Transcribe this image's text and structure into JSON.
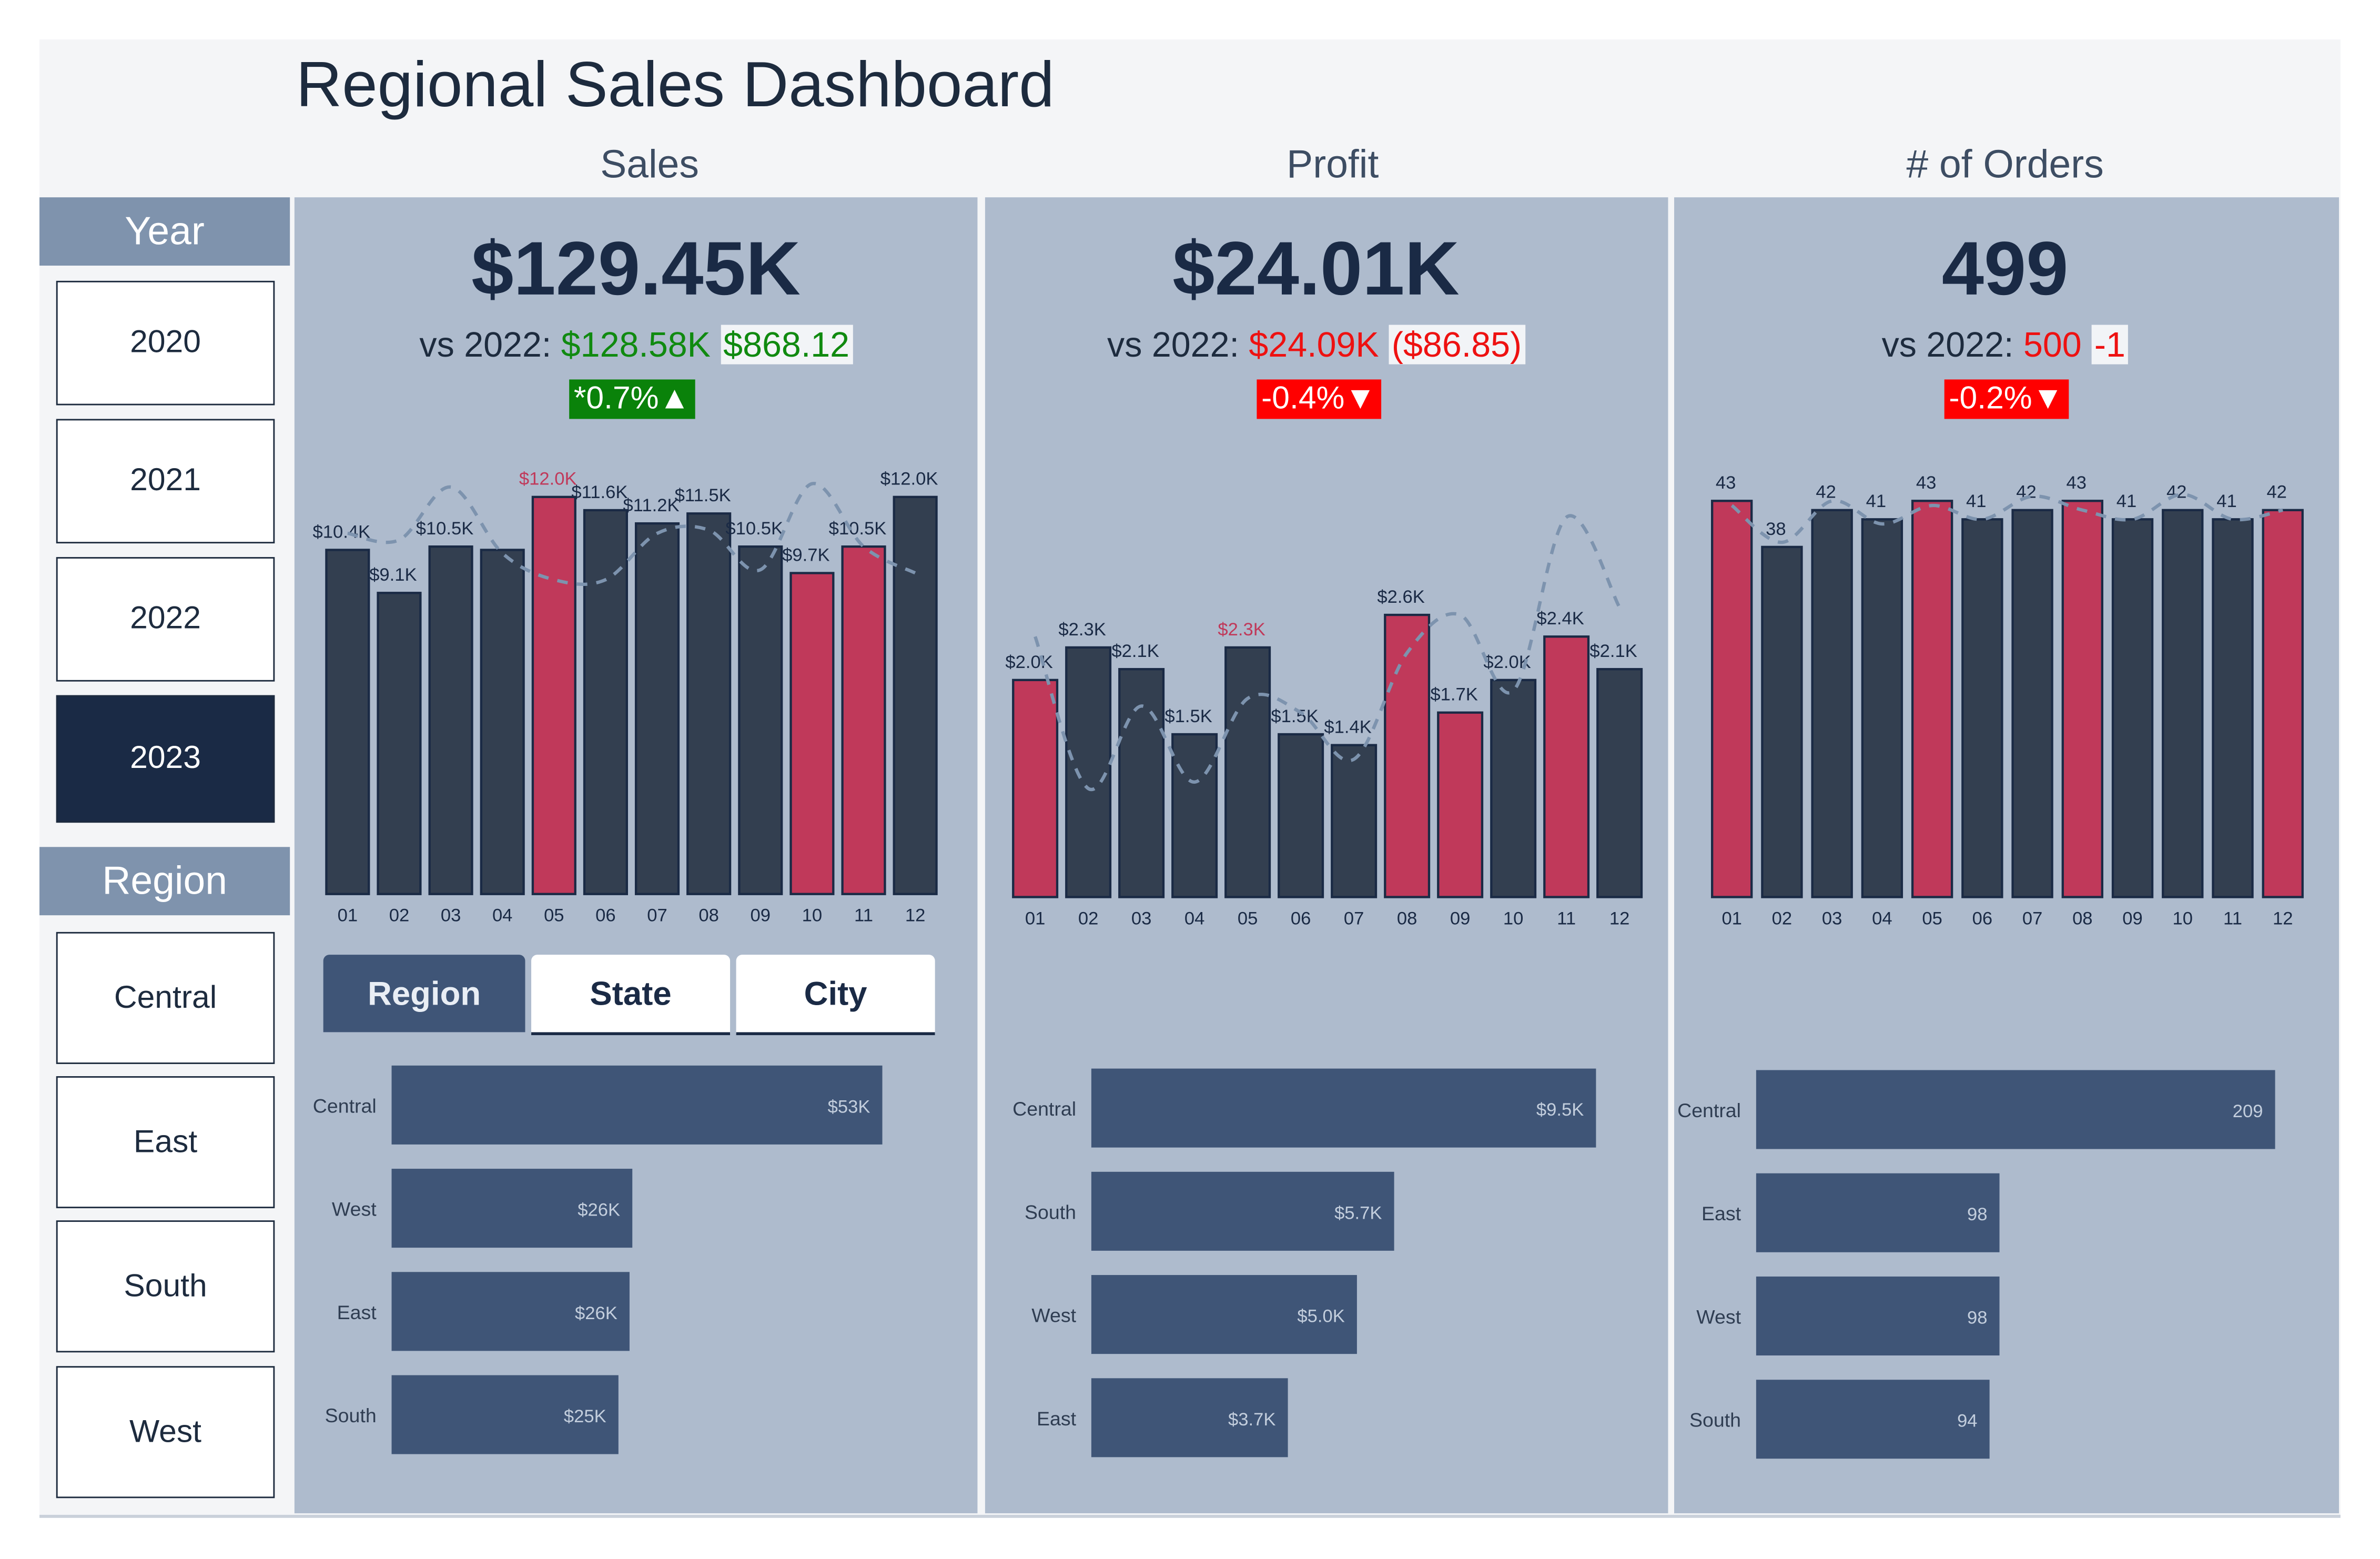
{
  "title": "Regional Sales Dashboard",
  "columns": {
    "sales": "Sales",
    "profit": "Profit",
    "orders": "# of Orders"
  },
  "filters": {
    "year_header": "Year",
    "years": [
      "2020",
      "2021",
      "2022",
      "2023"
    ],
    "selected_year": "2023",
    "region_header": "Region",
    "regions": [
      "Central",
      "East",
      "South",
      "West"
    ]
  },
  "kpis": {
    "sales": {
      "value": "$129.45K",
      "vs_label": "vs 2022:",
      "prior": "$128.58K",
      "diff": "$868.12",
      "pct": "*0.7%▲",
      "trend": "up"
    },
    "profit": {
      "value": "$24.01K",
      "vs_label": "vs 2022:",
      "prior": "$24.09K",
      "diff": "($86.85)",
      "pct": "-0.4%▼",
      "trend": "down"
    },
    "orders": {
      "value": "499",
      "vs_label": "vs 2022:",
      "prior": "500",
      "diff": "-1",
      "pct": "-0.2%▼",
      "trend": "down"
    }
  },
  "colors": {
    "bar": "#333f50",
    "highlight_bar": "#c0395a",
    "prior_line": "#7d93ae",
    "hbar": "#3f5577",
    "up": "#0a820a",
    "down": "#ff0000",
    "panel": "#aebbcd"
  },
  "breakdown_tabs": {
    "items": [
      "Region",
      "State",
      "City"
    ],
    "selected": "Region"
  },
  "chart_data": [
    {
      "type": "bar",
      "id": "sales_monthly",
      "categories": [
        "01",
        "02",
        "03",
        "04",
        "05",
        "06",
        "07",
        "08",
        "09",
        "10",
        "11",
        "12"
      ],
      "values": [
        10.4,
        9.1,
        10.5,
        10.4,
        12.0,
        11.6,
        11.2,
        11.5,
        10.5,
        9.7,
        10.5,
        12.0
      ],
      "labels": [
        "$10.4K",
        "$9.1K",
        "$10.5K",
        null,
        "$12.0K",
        "$11.6K",
        "$11.2K",
        "$11.5K",
        "$10.5K",
        "$9.7K",
        "$10.5K",
        "$12.0K"
      ],
      "highlight": [
        false,
        false,
        false,
        false,
        true,
        false,
        false,
        false,
        false,
        true,
        true,
        false
      ],
      "red_label": [
        false,
        false,
        false,
        false,
        true,
        false,
        false,
        false,
        false,
        false,
        false,
        false
      ],
      "prior_year_line": [
        10.9,
        10.7,
        12.3,
        10.3,
        9.5,
        9.5,
        10.9,
        11.0,
        9.8,
        12.4,
        10.5,
        9.7
      ],
      "unit": "K$"
    },
    {
      "type": "bar",
      "id": "profit_monthly",
      "categories": [
        "01",
        "02",
        "03",
        "04",
        "05",
        "06",
        "07",
        "08",
        "09",
        "10",
        "11",
        "12"
      ],
      "values": [
        2.0,
        2.3,
        2.1,
        1.5,
        2.3,
        1.5,
        1.4,
        2.6,
        1.7,
        2.0,
        2.4,
        2.1
      ],
      "labels": [
        "$2.0K",
        "$2.3K",
        "$2.1K",
        "$1.5K",
        "$2.3K",
        "$1.5K",
        "$1.4K",
        "$2.6K",
        "$1.7K",
        "$2.0K",
        "$2.4K",
        "$2.1K"
      ],
      "highlight": [
        true,
        false,
        false,
        false,
        false,
        false,
        false,
        true,
        true,
        false,
        true,
        false
      ],
      "red_label": [
        false,
        false,
        false,
        false,
        true,
        false,
        false,
        false,
        false,
        false,
        false,
        false
      ],
      "prior_year_line": [
        2.4,
        1.0,
        1.76,
        1.06,
        1.83,
        1.7,
        1.27,
        2.25,
        2.6,
        1.9,
        3.5,
        2.67
      ],
      "unit": "K$"
    },
    {
      "type": "bar",
      "id": "orders_monthly",
      "categories": [
        "01",
        "02",
        "03",
        "04",
        "05",
        "06",
        "07",
        "08",
        "09",
        "10",
        "11",
        "12"
      ],
      "values": [
        43,
        38,
        42,
        41,
        43,
        41,
        42,
        43,
        41,
        42,
        41,
        42
      ],
      "labels": [
        "43",
        "38",
        "42",
        "41",
        "43",
        "41",
        "42",
        "43",
        "41",
        "42",
        "41",
        "42"
      ],
      "highlight": [
        true,
        false,
        false,
        false,
        true,
        false,
        false,
        true,
        false,
        false,
        false,
        true
      ],
      "red_label": [
        false,
        false,
        false,
        false,
        false,
        false,
        false,
        false,
        false,
        false,
        false,
        false
      ],
      "prior_year_line": [
        42.5,
        38.5,
        43,
        40.5,
        42.5,
        41,
        43.5,
        42,
        41,
        43.7,
        41,
        42
      ]
    },
    {
      "type": "bar",
      "id": "sales_by_region",
      "orientation": "horizontal",
      "categories": [
        "Central",
        "West",
        "East",
        "South"
      ],
      "values": [
        53,
        26,
        25.7,
        24.5
      ],
      "labels": [
        "$53K",
        "$26K",
        "$26K",
        "$25K"
      ]
    },
    {
      "type": "bar",
      "id": "profit_by_region",
      "orientation": "horizontal",
      "categories": [
        "Central",
        "South",
        "West",
        "East"
      ],
      "values": [
        9.5,
        5.7,
        5.0,
        3.7
      ],
      "labels": [
        "$9.5K",
        "$5.7K",
        "$5.0K",
        "$3.7K"
      ]
    },
    {
      "type": "bar",
      "id": "orders_by_region",
      "orientation": "horizontal",
      "categories": [
        "Central",
        "East",
        "West",
        "South"
      ],
      "values": [
        209,
        98,
        98,
        94
      ],
      "labels": [
        "209",
        "98",
        "98",
        "94"
      ]
    }
  ]
}
